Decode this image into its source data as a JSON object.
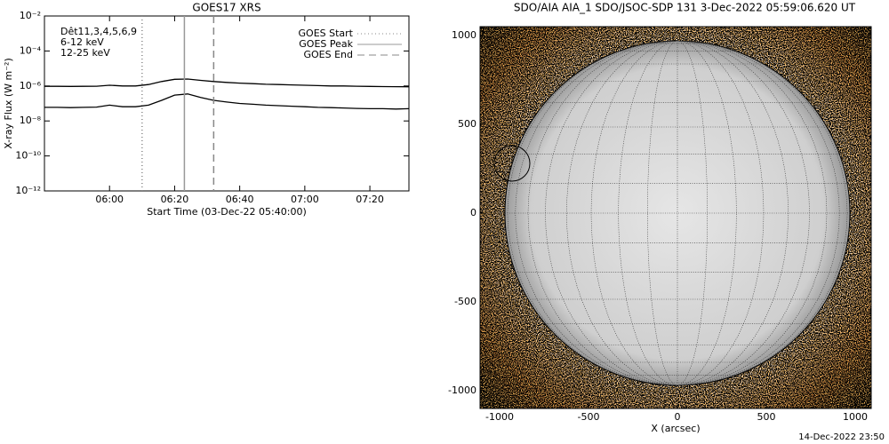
{
  "chart_data": [
    {
      "type": "line",
      "title": "GOES17 XRS",
      "xlabel": "Start Time (03-Dec-22 05:40:00)",
      "ylabel": "X-ray Flux (W m⁻²)",
      "log_scale": true,
      "legend_title": "Dêt11,3,4,5,6,9",
      "x": [
        "05:40",
        "05:44",
        "05:48",
        "05:52",
        "05:56",
        "06:00",
        "06:04",
        "06:08",
        "06:12",
        "06:16",
        "06:20",
        "06:24",
        "06:28",
        "06:32",
        "06:36",
        "06:40",
        "06:44",
        "06:48",
        "06:52",
        "06:56",
        "07:00",
        "07:04",
        "07:08",
        "07:12",
        "07:16",
        "07:20",
        "07:24",
        "07:28",
        "07:32"
      ],
      "series": [
        {
          "name": "6-12 keV",
          "color": "#000000",
          "label_color": "#e000e0",
          "values": [
            9.5e-07,
            9.5e-07,
            9.4e-07,
            9.5e-07,
            9.6e-07,
            1.1e-06,
            1e-06,
            1e-06,
            1.2e-06,
            1.8e-06,
            2.4e-06,
            2.5e-06,
            2.1e-06,
            1.8e-06,
            1.6e-06,
            1.45e-06,
            1.35e-06,
            1.25e-06,
            1.2e-06,
            1.15e-06,
            1.1e-06,
            1.05e-06,
            1e-06,
            1e-06,
            9.6e-07,
            9.4e-07,
            9.2e-07,
            9.1e-07,
            9e-07
          ]
        },
        {
          "name": "12-25 keV",
          "color": "#000000",
          "label_color": "#00d000",
          "values": [
            6e-08,
            6e-08,
            5.8e-08,
            6e-08,
            6.2e-08,
            8e-08,
            6.5e-08,
            6.5e-08,
            8e-08,
            1.5e-07,
            3e-07,
            3.5e-07,
            2.2e-07,
            1.5e-07,
            1.2e-07,
            1e-07,
            9e-08,
            8e-08,
            7.5e-08,
            7e-08,
            6.5e-08,
            6e-08,
            5.8e-08,
            5.5e-08,
            5.2e-08,
            5e-08,
            5e-08,
            4.8e-08,
            5e-08
          ]
        }
      ],
      "markers": [
        {
          "name": "GOES Start",
          "x": "06:10",
          "color": "#888888",
          "dash": "1,3"
        },
        {
          "name": "GOES Peak",
          "x": "06:23",
          "color": "#999999",
          "dash": "none"
        },
        {
          "name": "GOES End",
          "x": "06:32",
          "color": "#888888",
          "dash": "8,5"
        }
      ],
      "xlim": [
        "05:40",
        "07:32"
      ],
      "xticks": [
        "06:00",
        "06:20",
        "06:40",
        "07:00",
        "07:20"
      ],
      "ylim": [
        1e-12,
        0.01
      ],
      "yticks": [
        {
          "value": 1e-12,
          "label": "10⁻¹²"
        },
        {
          "value": 1e-10,
          "label": "10⁻¹⁰"
        },
        {
          "value": 1e-08,
          "label": "10⁻⁸"
        },
        {
          "value": 1e-06,
          "label": "10⁻⁶"
        },
        {
          "value": 0.0001,
          "label": "10⁻⁴"
        },
        {
          "value": 0.01,
          "label": "10⁻²"
        }
      ]
    },
    {
      "type": "image",
      "title": "SDO/AIA AIA_1 SDO/JSOC-SDP 131  3-Dec-2022 05:59:06.620 UT",
      "xlabel": "X (arcsec)",
      "xlim": [
        -1110,
        1090
      ],
      "ylim": [
        -1100,
        1050
      ],
      "xticks": [
        -1000,
        -500,
        0,
        500,
        1000
      ],
      "yticks": [
        -1000,
        -500,
        0,
        500,
        1000
      ]
    }
  ],
  "footer": "14-Dec-2022 23:50"
}
